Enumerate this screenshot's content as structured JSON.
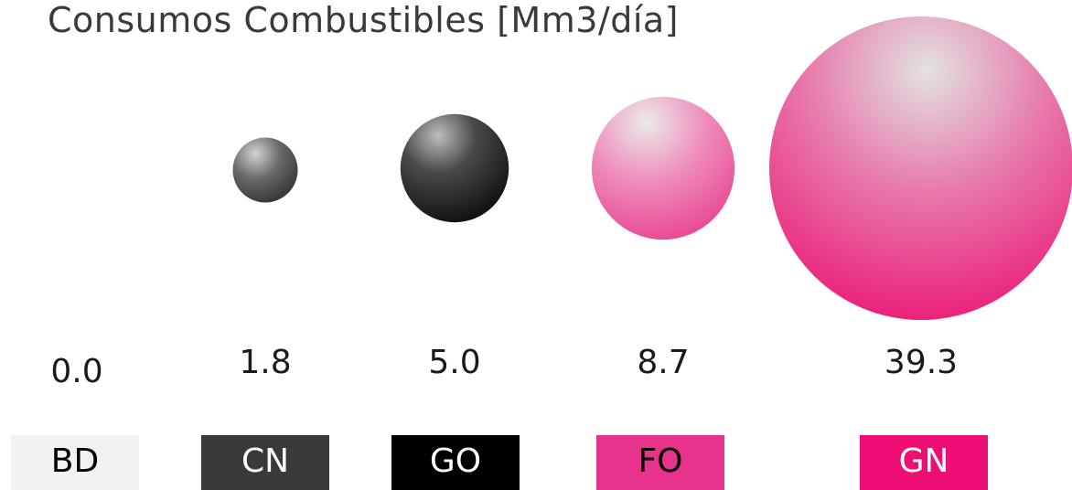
{
  "chart_data": {
    "type": "bubble",
    "title": "Consumos Combustibles [Mm3/día]",
    "categories": [
      "BD",
      "CN",
      "GO",
      "FO",
      "GN"
    ],
    "values": [
      0.0,
      1.8,
      5.0,
      8.7,
      39.3
    ],
    "value_labels": [
      "0.0",
      "1.8",
      "5.0",
      "8.7",
      "39.3"
    ],
    "colors": [
      "#f3f0f1",
      "#3a3a3a",
      "#000000",
      "#e8338d",
      "#ee0f74"
    ],
    "label_text_colors": [
      "#000000",
      "#ffffff",
      "#ffffff",
      "#000000",
      "#ffffff"
    ],
    "legend": "bottom"
  }
}
